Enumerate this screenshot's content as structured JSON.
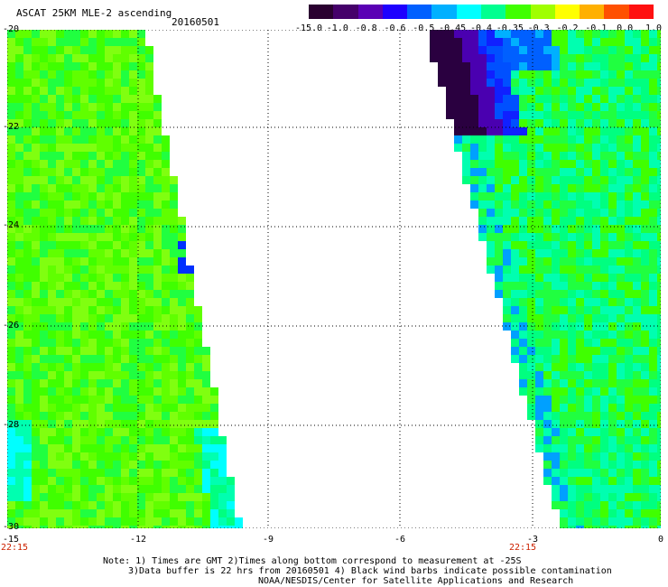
{
  "header": {
    "title": "ASCAT 25KM MLE-2 ascending",
    "date": "20160501"
  },
  "colorbar": {
    "labels": [
      "-15.0",
      "-1.0",
      "-0.8",
      "-0.6",
      "-0.5",
      "-0.45",
      "-0.4",
      "-0.35",
      "-0.3",
      "-0.2",
      "-0.1",
      "0.0",
      "1.0"
    ],
    "colors": [
      "#2a0030",
      "#45006a",
      "#5a00b4",
      "#1e00ff",
      "#0060ff",
      "#00b0ff",
      "#00ffff",
      "#00ff90",
      "#40ff00",
      "#a0ff00",
      "#ffff00",
      "#ffb000",
      "#ff5000",
      "#ff1010"
    ]
  },
  "map": {
    "lat_labels": [
      "-20",
      "-22",
      "-24",
      "-26",
      "-28",
      "-30"
    ],
    "lon_labels": [
      "-15",
      "-12",
      "-9",
      "-6",
      "-3",
      "0"
    ],
    "time_labels": [
      "22:15",
      "22:15"
    ],
    "lat_range": [
      -30,
      -20
    ],
    "lon_range": [
      -15,
      0
    ]
  },
  "notes": {
    "line1": "Note: 1) Times are GMT 2)Times along bottom correspond to measurement at -25S",
    "line2": "3)Data buffer is 22 hrs from 20160501 4) Black wind barbs indicate possible contamination",
    "line3": "NOAA/NESDIS/Center for Satellite Applications and Research"
  }
}
